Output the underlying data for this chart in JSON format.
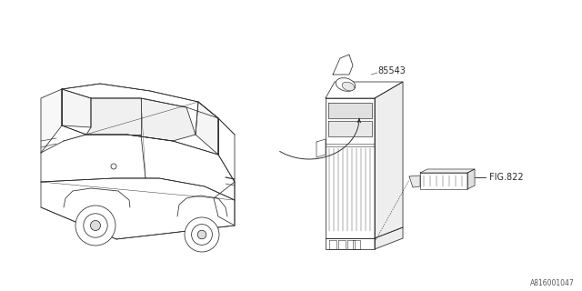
{
  "bg_color": "#ffffff",
  "line_color": "#2a2a2a",
  "text_color": "#2a2a2a",
  "part_number": "85543",
  "fig_label": "FIG.822",
  "diagram_id": "A816001047",
  "lw": 0.55
}
